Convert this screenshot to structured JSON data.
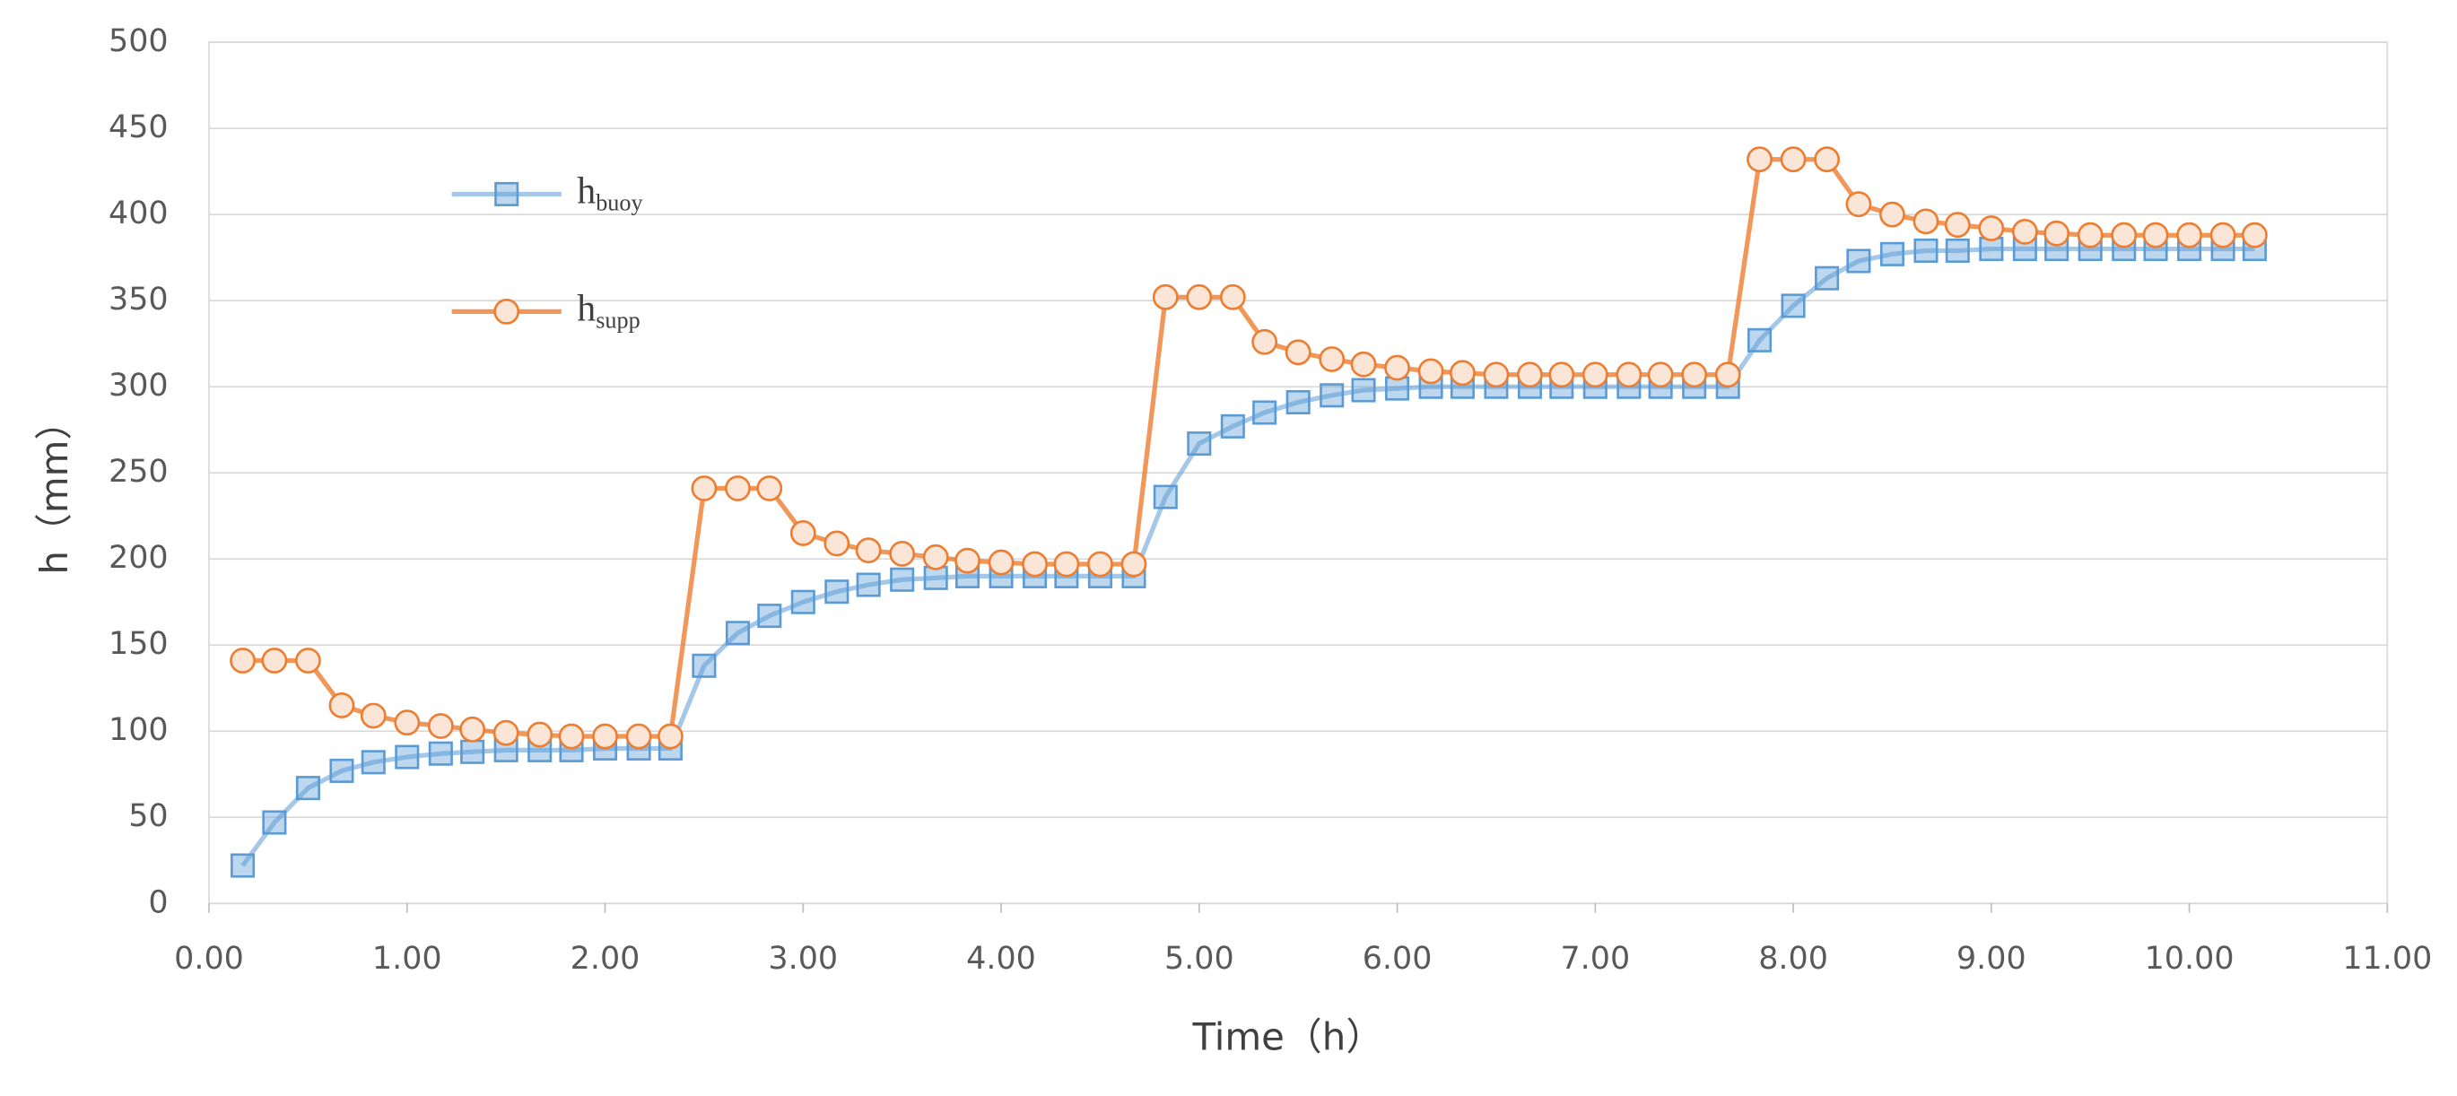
{
  "chart_data": {
    "type": "line",
    "x": [
      0.17,
      0.33,
      0.5,
      0.67,
      0.83,
      1,
      1.17,
      1.33,
      1.5,
      1.67,
      1.83,
      2,
      2.17,
      2.33,
      2.5,
      2.67,
      2.83,
      3,
      3.17,
      3.33,
      3.5,
      3.67,
      3.83,
      4,
      4.17,
      4.33,
      4.5,
      4.67,
      4.83,
      5,
      5.17,
      5.33,
      5.5,
      5.67,
      5.83,
      6,
      6.17,
      6.33,
      6.5,
      6.67,
      6.83,
      7,
      7.17,
      7.33,
      7.5,
      7.67,
      7.83,
      8,
      8.17,
      8.33,
      8.5,
      8.67,
      8.83,
      9,
      9.17,
      9.33,
      9.5,
      9.67,
      9.83,
      10,
      10.17,
      10.33
    ],
    "series": [
      {
        "name": "hbuoy",
        "color": "#5b9bd5",
        "marker": "square",
        "values": [
          22,
          47,
          67,
          77,
          82,
          85,
          87,
          88,
          89,
          89,
          89,
          90,
          90,
          90,
          138,
          157,
          167,
          175,
          181,
          185,
          188,
          189,
          190,
          190,
          190,
          190,
          190,
          190,
          236,
          267,
          277,
          285,
          291,
          295,
          298,
          299,
          300,
          300,
          300,
          300,
          300,
          300,
          300,
          300,
          300,
          300,
          327,
          347,
          363,
          373,
          377,
          379,
          379,
          380,
          380,
          380,
          380,
          380,
          380,
          380,
          380,
          380
        ]
      },
      {
        "name": "hsupp",
        "color": "#ed7d31",
        "marker": "circle",
        "values": [
          141,
          141,
          141,
          115,
          109,
          105,
          103,
          101,
          99,
          98,
          97,
          97,
          97,
          97,
          241,
          241,
          241,
          215,
          209,
          205,
          203,
          201,
          199,
          198,
          197,
          197,
          197,
          197,
          352,
          352,
          352,
          326,
          320,
          316,
          313,
          311,
          309,
          308,
          307,
          307,
          307,
          307,
          307,
          307,
          307,
          307,
          432,
          432,
          432,
          406,
          400,
          396,
          394,
          392,
          390,
          389,
          388,
          388,
          388,
          388,
          388,
          388
        ]
      }
    ],
    "xlabel": "Time（h）",
    "ylabel": "h（mm）",
    "xlim": [
      0,
      11
    ],
    "ylim": [
      0,
      500
    ],
    "xticks": [
      {
        "value": 0,
        "label": "0.00"
      },
      {
        "value": 1,
        "label": "1.00"
      },
      {
        "value": 2,
        "label": "2.00"
      },
      {
        "value": 3,
        "label": "3.00"
      },
      {
        "value": 4,
        "label": "4.00"
      },
      {
        "value": 5,
        "label": "5.00"
      },
      {
        "value": 6,
        "label": "6.00"
      },
      {
        "value": 7,
        "label": "7.00"
      },
      {
        "value": 8,
        "label": "8.00"
      },
      {
        "value": 9,
        "label": "9.00"
      },
      {
        "value": 10,
        "label": "10.00"
      },
      {
        "value": 11,
        "label": "11.00"
      }
    ],
    "yticks": [
      0,
      50,
      100,
      150,
      200,
      250,
      300,
      350,
      400,
      450,
      500
    ],
    "grid": true,
    "legend": "upper-left"
  }
}
